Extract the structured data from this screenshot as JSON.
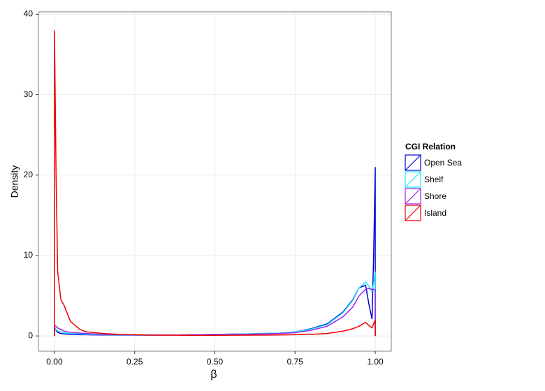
{
  "chart_data": {
    "type": "line",
    "x_label": "β",
    "y_label": "Density",
    "legend_title": "CGI Relation",
    "legend_position": "right",
    "grid": true,
    "xlim": [
      -0.05,
      1.05
    ],
    "ylim": [
      -1.9,
      40.3
    ],
    "xticks": [
      {
        "value": 0,
        "label": "0.00"
      },
      {
        "value": 0.25,
        "label": "0.25"
      },
      {
        "value": 0.5,
        "label": "0.50"
      },
      {
        "value": 0.75,
        "label": "0.75"
      },
      {
        "value": 1,
        "label": "1.00"
      }
    ],
    "yticks": [
      0,
      10,
      20,
      30,
      40
    ],
    "x": [
      0,
      0,
      0.005,
      0.01,
      0.02,
      0.03,
      0.05,
      0.08,
      0.1,
      0.15,
      0.2,
      0.3,
      0.4,
      0.5,
      0.6,
      0.7,
      0.75,
      0.8,
      0.85,
      0.9,
      0.93,
      0.95,
      0.97,
      0.98,
      0.99,
      0.995,
      1,
      1
    ],
    "series": [
      {
        "name": "Open Sea",
        "color": "#0000dd",
        "values": [
          0,
          1.1,
          0.7,
          0.45,
          0.3,
          0.25,
          0.2,
          0.15,
          0.15,
          0.12,
          0.1,
          0.1,
          0.12,
          0.2,
          0.25,
          0.35,
          0.5,
          0.9,
          1.5,
          3.0,
          4.5,
          6.0,
          6.3,
          4.0,
          2.1,
          10,
          21,
          0
        ]
      },
      {
        "name": "Shelf",
        "color": "#22e6f0",
        "values": [
          0,
          1.0,
          0.8,
          0.6,
          0.5,
          0.4,
          0.3,
          0.25,
          0.2,
          0.15,
          0.12,
          0.1,
          0.12,
          0.18,
          0.25,
          0.35,
          0.5,
          0.85,
          1.4,
          2.9,
          4.4,
          6.0,
          6.7,
          6.2,
          5.5,
          6.5,
          8,
          0
        ]
      },
      {
        "name": "Shore",
        "color": "#a020f0",
        "values": [
          0,
          1.3,
          1.2,
          1.0,
          0.8,
          0.6,
          0.45,
          0.35,
          0.3,
          0.2,
          0.15,
          0.12,
          0.12,
          0.15,
          0.2,
          0.3,
          0.4,
          0.7,
          1.2,
          2.4,
          3.6,
          5.0,
          5.8,
          5.9,
          5.8,
          5.8,
          5.7,
          0
        ]
      },
      {
        "name": "Island",
        "color": "#ee0000",
        "values": [
          0,
          38,
          20,
          8,
          4.5,
          3.8,
          1.8,
          0.8,
          0.5,
          0.3,
          0.2,
          0.1,
          0.08,
          0.08,
          0.1,
          0.12,
          0.15,
          0.2,
          0.3,
          0.6,
          0.9,
          1.2,
          1.7,
          1.3,
          1.0,
          1.5,
          2.0,
          0
        ]
      }
    ]
  }
}
